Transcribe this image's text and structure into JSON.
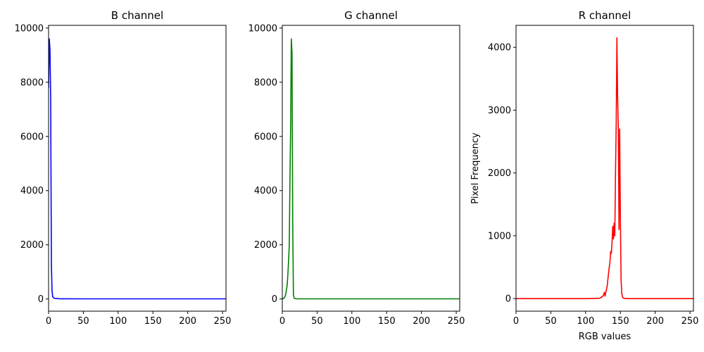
{
  "chart_data": [
    {
      "type": "line",
      "title": "B channel",
      "xlabel": "",
      "ylabel": "",
      "xlim": [
        0,
        255
      ],
      "ylim": [
        -450,
        10100
      ],
      "xticks": [
        0,
        50,
        100,
        150,
        200,
        250
      ],
      "yticks": [
        0,
        2000,
        4000,
        6000,
        8000,
        10000
      ],
      "grid": false,
      "color": "#0000ff",
      "x": [
        0,
        1,
        2,
        3,
        4,
        5,
        6,
        8,
        10,
        15,
        20,
        50,
        100,
        150,
        200,
        255
      ],
      "y": [
        7800,
        9600,
        9200,
        7300,
        1300,
        300,
        80,
        30,
        20,
        10,
        8,
        5,
        5,
        5,
        5,
        5
      ]
    },
    {
      "type": "line",
      "title": "G channel",
      "xlabel": "",
      "ylabel": "",
      "xlim": [
        0,
        255
      ],
      "ylim": [
        -450,
        10100
      ],
      "xticks": [
        0,
        50,
        100,
        150,
        200,
        250
      ],
      "yticks": [
        0,
        2000,
        4000,
        6000,
        8000,
        10000
      ],
      "grid": false,
      "color": "#008000",
      "x": [
        0,
        3,
        5,
        7,
        8,
        9,
        10,
        11,
        12,
        13,
        14,
        15,
        16,
        17,
        20,
        50,
        100,
        150,
        200,
        255
      ],
      "y": [
        0,
        40,
        180,
        500,
        900,
        1400,
        2000,
        4500,
        6500,
        9600,
        9100,
        2800,
        150,
        30,
        5,
        5,
        5,
        5,
        5,
        5
      ]
    },
    {
      "type": "line",
      "title": "R channel",
      "xlabel": "RGB values",
      "ylabel": "Pixel Frequency",
      "xlim": [
        0,
        255
      ],
      "ylim": [
        -200,
        4350
      ],
      "xticks": [
        0,
        50,
        100,
        150,
        200,
        250
      ],
      "yticks": [
        0,
        1000,
        2000,
        3000,
        4000
      ],
      "grid": false,
      "color": "#ff0000",
      "x": [
        0,
        50,
        100,
        120,
        124,
        126,
        127,
        128,
        129,
        130,
        131,
        132,
        133,
        134,
        135,
        136,
        137,
        138,
        139,
        140,
        141,
        142,
        143,
        144,
        145,
        146,
        147,
        148,
        149,
        150,
        151,
        152,
        153,
        154,
        155,
        160,
        200,
        255
      ],
      "y": [
        0,
        0,
        0,
        5,
        30,
        60,
        100,
        40,
        100,
        150,
        200,
        300,
        400,
        500,
        580,
        750,
        720,
        900,
        1150,
        950,
        1200,
        1000,
        2000,
        2800,
        4150,
        3200,
        2700,
        1100,
        2700,
        1300,
        300,
        80,
        30,
        10,
        5,
        0,
        0,
        0
      ]
    }
  ]
}
